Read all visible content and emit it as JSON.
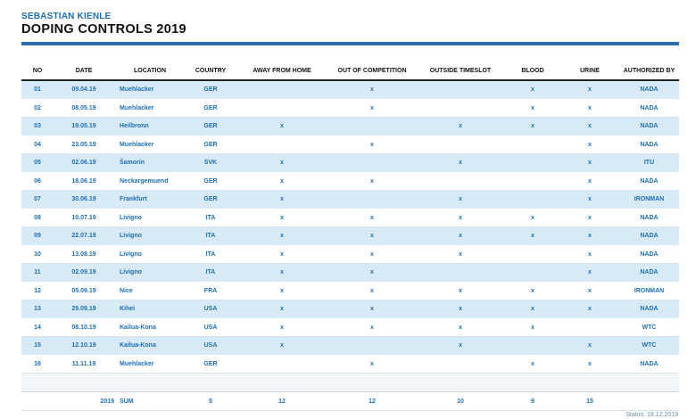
{
  "header": {
    "athlete": "SEBASTIAN KIENLE",
    "title": "DOPING CONTROLS 2019"
  },
  "table": {
    "columns": [
      "NO",
      "DATE",
      "LOCATION",
      "COUNTRY",
      "AWAY FROM HOME",
      "OUT OF COMPETITION",
      "OUTSIDE TIMESLOT",
      "BLOOD",
      "URINE",
      "AUTHORIZED BY"
    ],
    "rows": [
      [
        "01",
        "09.04.19",
        "Muehlacker",
        "GER",
        "",
        "x",
        "",
        "x",
        "x",
        "NADA"
      ],
      [
        "02",
        "08.05.19",
        "Muehlacker",
        "GER",
        "",
        "x",
        "",
        "x",
        "x",
        "NADA"
      ],
      [
        "03",
        "19.05.19",
        "Heilbronn",
        "GER",
        "x",
        "",
        "x",
        "x",
        "x",
        "NADA"
      ],
      [
        "04",
        "23.05.19",
        "Muehlacker",
        "GER",
        "",
        "x",
        "",
        "",
        "x",
        "NADA"
      ],
      [
        "05",
        "02.06.19",
        "Šamorín",
        "SVK",
        "x",
        "",
        "x",
        "",
        "x",
        "ITU"
      ],
      [
        "06",
        "18.06.19",
        "Neckargemuend",
        "GER",
        "x",
        "x",
        "",
        "",
        "x",
        "NADA"
      ],
      [
        "07",
        "30.06.19",
        "Frankfurt",
        "GER",
        "x",
        "",
        "x",
        "",
        "x",
        "IRONMAN"
      ],
      [
        "08",
        "10.07.19",
        "Livigno",
        "ITA",
        "x",
        "x",
        "x",
        "x",
        "x",
        "NADA"
      ],
      [
        "09",
        "22.07.19",
        "Livigno",
        "ITA",
        "x",
        "x",
        "x",
        "x",
        "x",
        "NADA"
      ],
      [
        "10",
        "13.08.19",
        "Livigno",
        "ITA",
        "x",
        "x",
        "x",
        "",
        "x",
        "NADA"
      ],
      [
        "11",
        "02.09.19",
        "Livigno",
        "ITA",
        "x",
        "x",
        "",
        "",
        "x",
        "NADA"
      ],
      [
        "12",
        "05.09.19",
        "Nice",
        "FRA",
        "x",
        "x",
        "x",
        "x",
        "x",
        "IRONMAN"
      ],
      [
        "13",
        "29.09.19",
        "Kihei",
        "USA",
        "x",
        "x",
        "x",
        "x",
        "x",
        "NADA"
      ],
      [
        "14",
        "08.10.19",
        "Kailua-Kona",
        "USA",
        "x",
        "x",
        "x",
        "x",
        "",
        "WTC"
      ],
      [
        "15",
        "12.10.19",
        "Kailua-Kona",
        "USA",
        "x",
        "",
        "x",
        "",
        "x",
        "WTC"
      ],
      [
        "16",
        "11.11.19",
        "Muehlacker",
        "GER",
        "",
        "x",
        "",
        "x",
        "x",
        "NADA"
      ]
    ],
    "sum": [
      "",
      "2019",
      "SUM",
      "5",
      "12",
      "12",
      "10",
      "9",
      "15",
      ""
    ]
  },
  "footer": {
    "status": "Status: 18.12.2019"
  }
}
